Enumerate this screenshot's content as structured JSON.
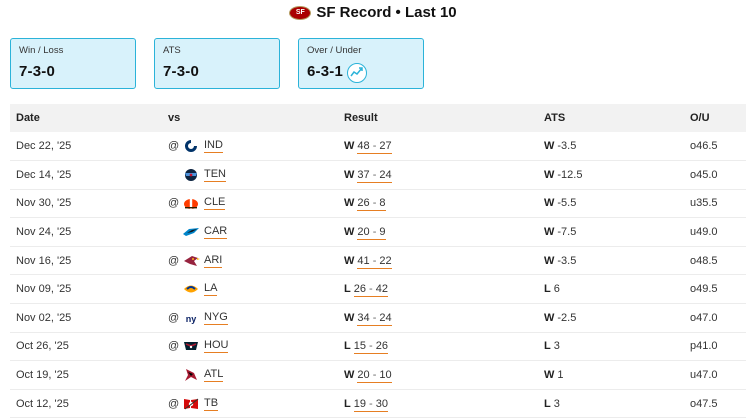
{
  "header": {
    "title": "SF Record • Last 10"
  },
  "cards": [
    {
      "label": "Win / Loss",
      "value": "7-3-0"
    },
    {
      "label": "ATS",
      "value": "7-3-0"
    },
    {
      "label": "Over / Under",
      "value": "6-3-1"
    }
  ],
  "table": {
    "columns": [
      "Date",
      "vs",
      "Result",
      "ATS",
      "O/U"
    ],
    "rows": [
      {
        "date": "Dec 22, '25",
        "at": "@",
        "team": "IND",
        "logo": "colts-logo",
        "wl": "W",
        "score_a": "48",
        "score_b": "27",
        "ats_wl": "W",
        "ats_line": "-3.5",
        "ou": "o46.5"
      },
      {
        "date": "Dec 14, '25",
        "at": "",
        "team": "TEN",
        "logo": "titans-logo",
        "wl": "W",
        "score_a": "37",
        "score_b": "24",
        "ats_wl": "W",
        "ats_line": "-12.5",
        "ou": "o45.0"
      },
      {
        "date": "Nov 30, '25",
        "at": "@",
        "team": "CLE",
        "logo": "browns-logo",
        "wl": "W",
        "score_a": "26",
        "score_b": "8",
        "ats_wl": "W",
        "ats_line": "-5.5",
        "ou": "u35.5"
      },
      {
        "date": "Nov 24, '25",
        "at": "",
        "team": "CAR",
        "logo": "panthers-logo",
        "wl": "W",
        "score_a": "20",
        "score_b": "9",
        "ats_wl": "W",
        "ats_line": "-7.5",
        "ou": "u49.0"
      },
      {
        "date": "Nov 16, '25",
        "at": "@",
        "team": "ARI",
        "logo": "cardinals-logo",
        "wl": "W",
        "score_a": "41",
        "score_b": "22",
        "ats_wl": "W",
        "ats_line": "-3.5",
        "ou": "o48.5"
      },
      {
        "date": "Nov 09, '25",
        "at": "",
        "team": "LA",
        "logo": "rams-logo",
        "wl": "L",
        "score_a": "26",
        "score_b": "42",
        "ats_wl": "L",
        "ats_line": "6",
        "ou": "o49.5"
      },
      {
        "date": "Nov 02, '25",
        "at": "@",
        "team": "NYG",
        "logo": "giants-logo",
        "wl": "W",
        "score_a": "34",
        "score_b": "24",
        "ats_wl": "W",
        "ats_line": "-2.5",
        "ou": "o47.0"
      },
      {
        "date": "Oct 26, '25",
        "at": "@",
        "team": "HOU",
        "logo": "texans-logo",
        "wl": "L",
        "score_a": "15",
        "score_b": "26",
        "ats_wl": "L",
        "ats_line": "3",
        "ou": "p41.0"
      },
      {
        "date": "Oct 19, '25",
        "at": "",
        "team": "ATL",
        "logo": "falcons-logo",
        "wl": "W",
        "score_a": "20",
        "score_b": "10",
        "ats_wl": "W",
        "ats_line": "1",
        "ou": "u47.0"
      },
      {
        "date": "Oct 12, '25",
        "at": "@",
        "team": "TB",
        "logo": "buccaneers-logo",
        "wl": "L",
        "score_a": "19",
        "score_b": "30",
        "ats_wl": "L",
        "ats_line": "3",
        "ou": "o47.5"
      }
    ]
  },
  "colors": {
    "card_bg": "#d8f2fb",
    "card_border": "#2bb3d9",
    "score_underline": "#e67e22",
    "header_bg": "#f2f2f2"
  }
}
